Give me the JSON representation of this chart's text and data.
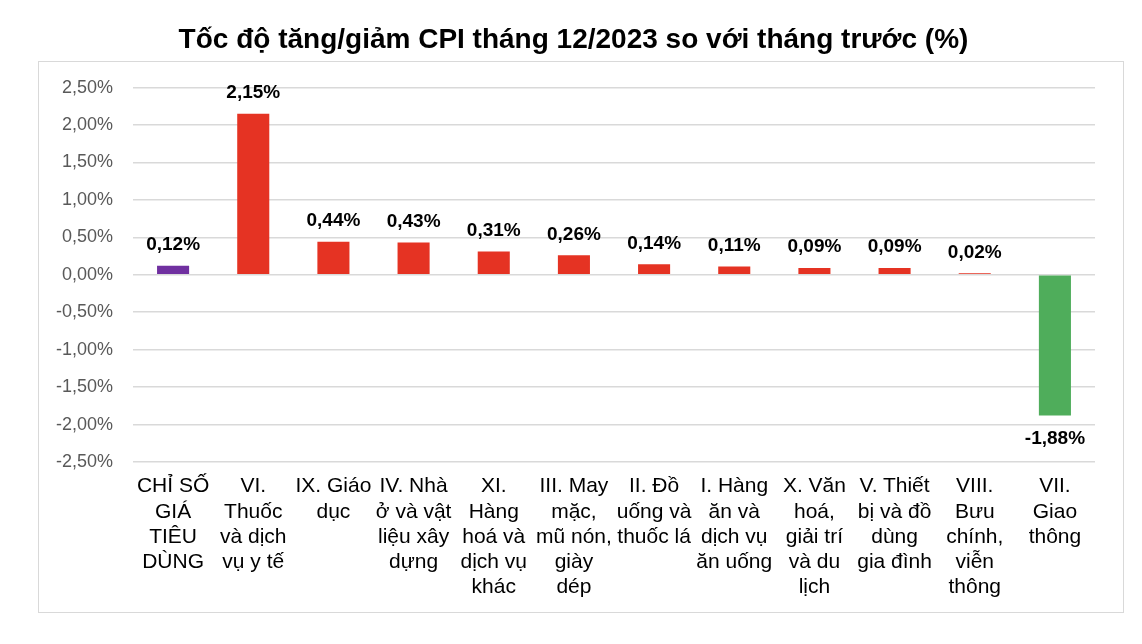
{
  "chart_data": {
    "type": "bar",
    "title": "Tốc độ tăng/giảm CPI tháng 12/2023 so với tháng trước (%)",
    "categories": [
      "CHỈ SỐ GIÁ TIÊU DÙNG",
      "VI. Thuốc và dịch vụ y tế",
      "IX. Giáo dục",
      "IV. Nhà ở và vật liệu xây dựng",
      "XI. Hàng hoá và dịch vụ khác",
      "III. May mặc, mũ nón, giày dép",
      "II. Đồ uống và thuốc lá",
      "I. Hàng ăn và dịch vụ ăn uống",
      "X. Văn hoá, giải trí và du lịch",
      "V. Thiết bị và đồ dùng gia đình",
      "VIII. Bưu chính, viễn thông",
      "VII. Giao thông"
    ],
    "values": [
      0.12,
      2.15,
      0.44,
      0.43,
      0.31,
      0.26,
      0.14,
      0.11,
      0.09,
      0.09,
      0.02,
      -1.88
    ],
    "colors": [
      "#7030a0",
      "#e53323",
      "#e53323",
      "#e53323",
      "#e53323",
      "#e53323",
      "#e53323",
      "#e53323",
      "#e53323",
      "#e53323",
      "#e53323",
      "#4fad5b"
    ],
    "value_labels": [
      "0,12%",
      "2,15%",
      "0,44%",
      "0,43%",
      "0,31%",
      "0,26%",
      "0,14%",
      "0,11%",
      "0,09%",
      "0,09%",
      "0,02%",
      "-1,88%"
    ],
    "ylim": [
      -2.5,
      2.5
    ],
    "yticks": [
      {
        "value": -2.5,
        "label": "-2,50%"
      },
      {
        "value": -2,
        "label": "-2,00%"
      },
      {
        "value": -1.5,
        "label": "-1,50%"
      },
      {
        "value": -1,
        "label": "-1,00%"
      },
      {
        "value": -0.5,
        "label": "-0,50%"
      },
      {
        "value": 0,
        "label": "0,00%"
      },
      {
        "value": 0.5,
        "label": "0,50%"
      },
      {
        "value": 1,
        "label": "1,00%"
      },
      {
        "value": 1.5,
        "label": "1,50%"
      },
      {
        "value": 2,
        "label": "2,00%"
      },
      {
        "value": 2.5,
        "label": "2,50%"
      }
    ],
    "grid": "y"
  }
}
